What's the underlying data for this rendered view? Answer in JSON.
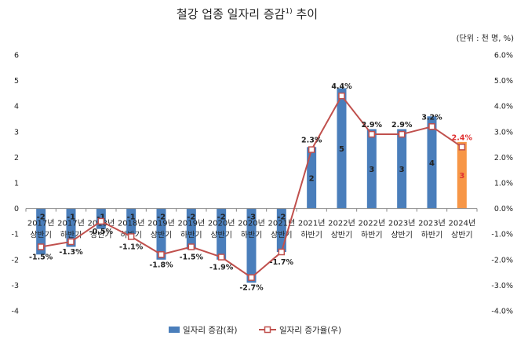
{
  "chart_data": {
    "type": "bar+line",
    "title": "철강 업종 일자리 증감",
    "title_superscript": "1)",
    "title_suffix": " 추이",
    "unit_label": "(단위 : 천 명, %)",
    "categories": [
      [
        "2017년",
        "상반기"
      ],
      [
        "2017년",
        "하반기"
      ],
      [
        "2018년",
        "상반기"
      ],
      [
        "2018년",
        "하반기"
      ],
      [
        "2019년",
        "상반기"
      ],
      [
        "2019년",
        "하반기"
      ],
      [
        "2020년",
        "상반기"
      ],
      [
        "2020년",
        "하반기"
      ],
      [
        "2021년",
        "상반기"
      ],
      [
        "2021년",
        "하반기"
      ],
      [
        "2022년",
        "상반기"
      ],
      [
        "2022년",
        "하반기"
      ],
      [
        "2023년",
        "상반기"
      ],
      [
        "2023년",
        "하반기"
      ],
      [
        "2024년",
        "상반기"
      ]
    ],
    "bar_series": {
      "name": "일자리 증감(좌)",
      "values": [
        -1.8,
        -1.5,
        -0.8,
        -1.0,
        -2.0,
        -1.6,
        -2.0,
        -2.9,
        -1.7,
        2.4,
        4.7,
        3.1,
        3.1,
        3.6,
        2.6
      ],
      "labels": [
        "-2",
        "-1",
        "-1",
        "-1",
        "-2",
        "-2",
        "-2",
        "-3",
        "-2",
        "2",
        "5",
        "3",
        "3",
        "4",
        "3"
      ],
      "color": "#4A7EBB",
      "highlight_color": "#F79646",
      "highlight_index": 14
    },
    "line_series": {
      "name": "일자리 증가율(우)",
      "values": [
        -1.5,
        -1.3,
        -0.5,
        -1.1,
        -1.8,
        -1.5,
        -1.9,
        -2.7,
        -1.7,
        2.3,
        4.4,
        2.9,
        2.9,
        3.2,
        2.4
      ],
      "labels": [
        "-1.5%",
        "-1.3%",
        "-0.5%",
        "-1.1%",
        "-1.8%",
        "-1.5%",
        "-1.9%",
        "-2.7%",
        "-1.7%",
        "2.3%",
        "4.4%",
        "2.9%",
        "2.9%",
        "3.2%",
        "2.4%"
      ],
      "color": "#C0504D",
      "highlight_label_color": "#E03030"
    },
    "y_left": {
      "min": -4,
      "max": 6,
      "step": 1,
      "ticks": [
        "-4",
        "-3",
        "-2",
        "-1",
        "0",
        "1",
        "2",
        "3",
        "4",
        "5",
        "6"
      ]
    },
    "y_right": {
      "min": -4,
      "max": 6,
      "step": 1,
      "ticks": [
        "-4.0%",
        "-3.0%",
        "-2.0%",
        "-1.0%",
        "0.0%",
        "1.0%",
        "2.0%",
        "3.0%",
        "4.0%",
        "5.0%",
        "6.0%"
      ]
    },
    "grid": false,
    "legend_position": "bottom-center"
  }
}
